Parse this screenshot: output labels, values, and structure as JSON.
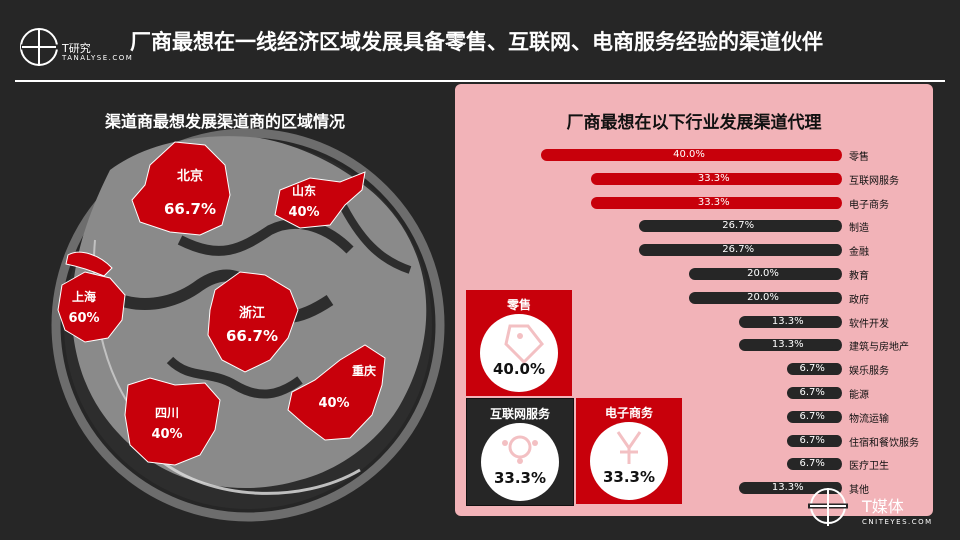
{
  "brand": {
    "name": "T研究",
    "sub": "TANALYSE.COM"
  },
  "footer_brand": {
    "name": "T媒体",
    "sub": "CNITEYES.COM"
  },
  "title": "厂商最想在一线经济区域发展具备零售、互联网、电商服务经验的渠道伙伴",
  "left_title": "渠道商最想发展渠道商的区域情况",
  "regions": [
    {
      "name": "北京",
      "value": "66.7%"
    },
    {
      "name": "山东",
      "value": "40%"
    },
    {
      "name": "上海",
      "value": "60%"
    },
    {
      "name": "浙江",
      "value": "66.7%"
    },
    {
      "name": "重庆",
      "value": "40%"
    },
    {
      "name": "四川",
      "value": "40%"
    }
  ],
  "chart_data": {
    "type": "bar",
    "title": "厂商最想在以下行业发展渠道代理",
    "orientation": "horizontal",
    "categories": [
      "零售",
      "互联网服务",
      "电子商务",
      "制造",
      "金融",
      "教育",
      "政府",
      "软件开发",
      "建筑与房地产",
      "娱乐服务",
      "能源",
      "物流运输",
      "住宿和餐饮服务",
      "医疗卫生",
      "其他"
    ],
    "values": [
      40.0,
      33.3,
      33.3,
      26.7,
      26.7,
      20.0,
      20.0,
      13.3,
      13.3,
      6.7,
      6.7,
      6.7,
      6.7,
      6.7,
      13.3
    ],
    "value_labels": [
      "40.0%",
      "33.3%",
      "33.3%",
      "26.7%",
      "26.7%",
      "20.0%",
      "20.0%",
      "13.3%",
      "13.3%",
      "6.7%",
      "6.7%",
      "6.7%",
      "6.7%",
      "6.7%",
      "13.3%"
    ],
    "xlim": [
      0,
      40
    ]
  },
  "cards": [
    {
      "label": "零售",
      "value": "40.0%",
      "icon": "tag-icon"
    },
    {
      "label": "互联网服务",
      "value": "33.3%",
      "icon": "network-icon"
    },
    {
      "label": "电子商务",
      "value": "33.3%",
      "icon": "yen-icon"
    }
  ],
  "colors": {
    "red": "#c8000b",
    "dark": "#262626",
    "panel": "#f2b3b8"
  }
}
